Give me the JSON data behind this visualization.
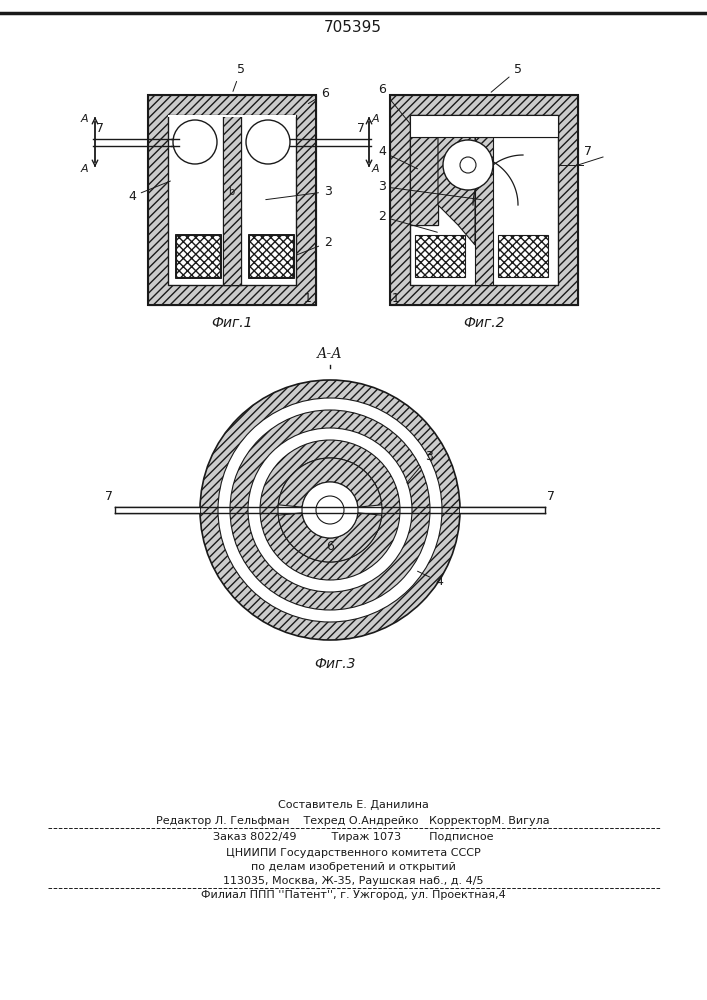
{
  "title_text": "705395",
  "line_color": "#1a1a1a",
  "fig1_label": "Фиг.1",
  "fig2_label": "Фиг.2",
  "fig3_label": "Фиг.3",
  "section_label": "А-А",
  "footer_lines": [
    "Составитель Е. Данилина",
    "Редактор Л. Гельфман    Техред О.Андрейко   КорректорМ. Вигула",
    "Заказ 8022/49          Тираж 1073        Подписное",
    "ЦНИИПИ Государственного комитета СССР",
    "по делам изобретений и открытий",
    "113035, Москва, Ж-35, Раушская наб., д. 4/5",
    "Филиал ППП ''Патент'', г. Ужгород, ул. Проектная,4"
  ]
}
